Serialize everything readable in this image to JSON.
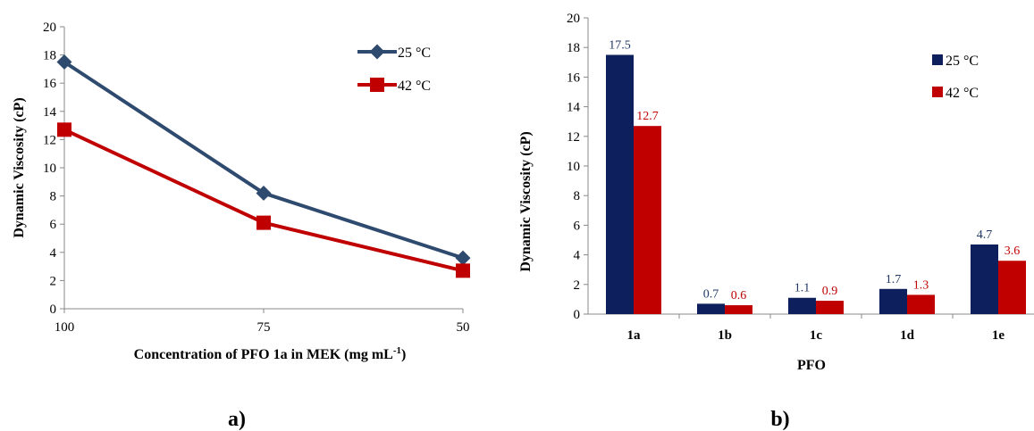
{
  "chart_data": [
    {
      "type": "line",
      "panel_label": "a)",
      "xlabel_main": "Concentration of PFO 1a in MEK (mg mL",
      "xlabel_sup": "-1",
      "xlabel_end": ")",
      "ylabel": "Dynamic Viscosity (cP)",
      "categories": [
        "100",
        "75",
        "50"
      ],
      "ylim": [
        0,
        20
      ],
      "yticks": [
        "0",
        "2",
        "4",
        "6",
        "8",
        "10",
        "12",
        "14",
        "16",
        "18",
        "20"
      ],
      "grid": false,
      "legend_position": "top-right",
      "series": [
        {
          "name": "25 °C",
          "values": [
            17.5,
            8.2,
            3.6
          ],
          "color": "#2e4a6e",
          "marker": "diamond"
        },
        {
          "name": "42 °C",
          "values": [
            12.7,
            6.1,
            2.7
          ],
          "color": "#c00000",
          "marker": "square"
        }
      ]
    },
    {
      "type": "bar",
      "panel_label": "b)",
      "xlabel": "PFO",
      "ylabel": "Dynamic Viscosity (cP)",
      "categories": [
        "1a",
        "1b",
        "1c",
        "1d",
        "1e"
      ],
      "ylim": [
        0,
        20
      ],
      "yticks": [
        "0",
        "2",
        "4",
        "6",
        "8",
        "10",
        "12",
        "14",
        "16",
        "18",
        "20"
      ],
      "grid": false,
      "legend_position": "top-right",
      "series": [
        {
          "name": "25 °C",
          "values": [
            17.5,
            0.7,
            1.1,
            1.7,
            4.7
          ],
          "labels": [
            "17.5",
            "0.7",
            "1.1",
            "1.7",
            "4.7"
          ],
          "color": "#0d1f5c",
          "label_color": "#1f3864"
        },
        {
          "name": "42 °C",
          "values": [
            12.7,
            0.6,
            0.9,
            1.3,
            3.6
          ],
          "labels": [
            "12.7",
            "0.6",
            "0.9",
            "1.3",
            "3.6"
          ],
          "color": "#c00000",
          "label_color": "#c00000"
        }
      ]
    }
  ]
}
